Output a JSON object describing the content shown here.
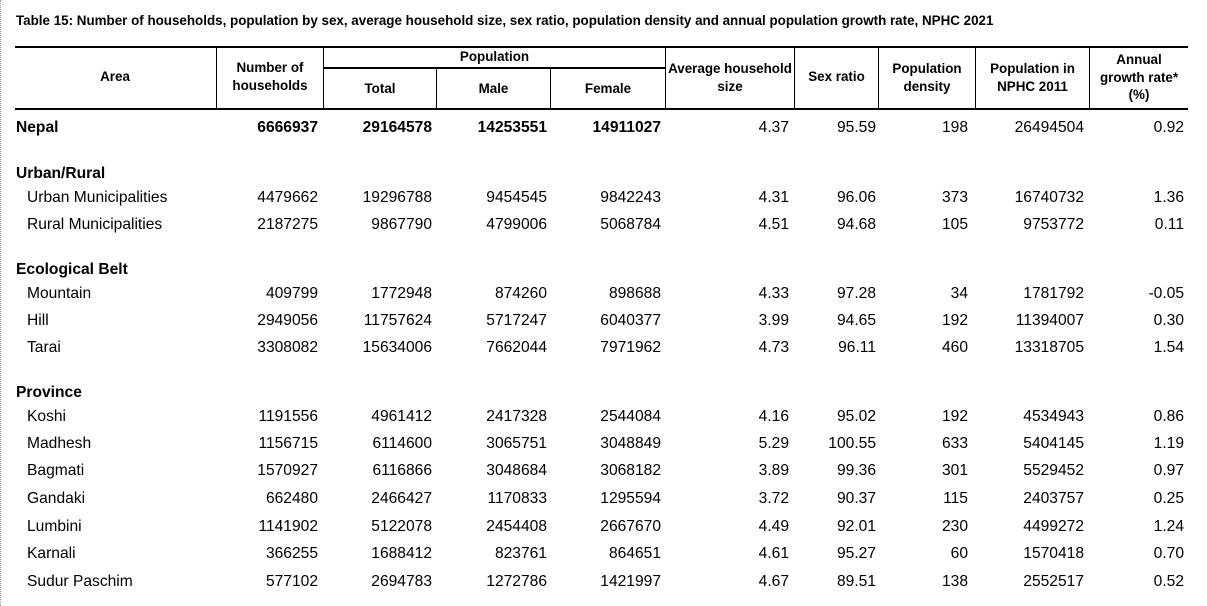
{
  "title": "Table 15: Number of households, population by sex, average household size, sex ratio, population density and annual population  growth rate, NPHC 2021",
  "headers": {
    "area": "Area",
    "households": [
      "Number of",
      "households"
    ],
    "population": "Population",
    "total": "Total",
    "male": "Male",
    "female": "Female",
    "avg_size": [
      "Average household",
      "size"
    ],
    "sex_ratio": "Sex ratio",
    "density": [
      "Population",
      "density"
    ],
    "pop2011": [
      "Population in",
      "NPHC 2011"
    ],
    "growth": [
      "Annual",
      "growth rate*",
      "(%)"
    ]
  },
  "rows": [
    {
      "type": "total",
      "area": "Nepal",
      "values": [
        "6666937",
        "29164578",
        "14253551",
        "14911027",
        "4.37",
        "95.59",
        "198",
        "26494504",
        "0.92"
      ]
    },
    {
      "type": "section",
      "area": "Urban/Rural"
    },
    {
      "type": "data",
      "area": "Urban Municipalities",
      "values": [
        "4479662",
        "19296788",
        "9454545",
        "9842243",
        "4.31",
        "96.06",
        "373",
        "16740732",
        "1.36"
      ]
    },
    {
      "type": "data",
      "area": "Rural Municipalities",
      "values": [
        "2187275",
        "9867790",
        "4799006",
        "5068784",
        "4.51",
        "94.68",
        "105",
        "9753772",
        "0.11"
      ]
    },
    {
      "type": "section",
      "area": "Ecological Belt"
    },
    {
      "type": "data",
      "area": "Mountain",
      "values": [
        "409799",
        "1772948",
        "874260",
        "898688",
        "4.33",
        "97.28",
        "34",
        "1781792",
        "-0.05"
      ]
    },
    {
      "type": "data",
      "area": "Hill",
      "values": [
        "2949056",
        "11757624",
        "5717247",
        "6040377",
        "3.99",
        "94.65",
        "192",
        "11394007",
        "0.30"
      ]
    },
    {
      "type": "data",
      "area": "Tarai",
      "values": [
        "3308082",
        "15634006",
        "7662044",
        "7971962",
        "4.73",
        "96.11",
        "460",
        "13318705",
        "1.54"
      ]
    },
    {
      "type": "section",
      "area": "Province"
    },
    {
      "type": "data",
      "area": "Koshi",
      "values": [
        "1191556",
        "4961412",
        "2417328",
        "2544084",
        "4.16",
        "95.02",
        "192",
        "4534943",
        "0.86"
      ]
    },
    {
      "type": "data",
      "area": "Madhesh",
      "values": [
        "1156715",
        "6114600",
        "3065751",
        "3048849",
        "5.29",
        "100.55",
        "633",
        "5404145",
        "1.19"
      ]
    },
    {
      "type": "data",
      "area": "Bagmati",
      "values": [
        "1570927",
        "6116866",
        "3048684",
        "3068182",
        "3.89",
        "99.36",
        "301",
        "5529452",
        "0.97"
      ]
    },
    {
      "type": "data",
      "area": "Gandaki",
      "values": [
        "662480",
        "2466427",
        "1170833",
        "1295594",
        "3.72",
        "90.37",
        "115",
        "2403757",
        "0.25"
      ]
    },
    {
      "type": "data",
      "area": "Lumbini",
      "values": [
        "1141902",
        "5122078",
        "2454408",
        "2667670",
        "4.49",
        "92.01",
        "230",
        "4499272",
        "1.24"
      ]
    },
    {
      "type": "data",
      "area": "Karnali",
      "values": [
        "366255",
        "1688412",
        "823761",
        "864651",
        "4.61",
        "95.27",
        "60",
        "1570418",
        "0.70"
      ]
    },
    {
      "type": "data",
      "area": "Sudur Paschim",
      "values": [
        "577102",
        "2694783",
        "1272786",
        "1421997",
        "4.67",
        "89.51",
        "138",
        "2552517",
        "0.52"
      ]
    }
  ]
}
